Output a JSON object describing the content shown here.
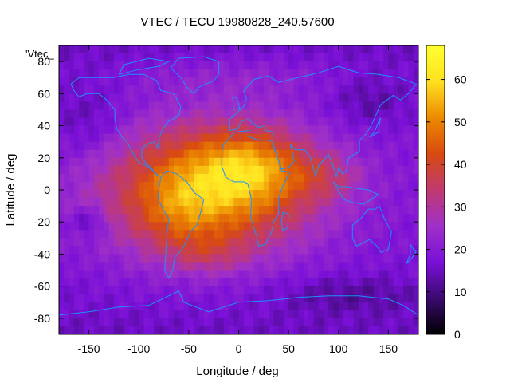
{
  "chart_data": {
    "type": "heatmap",
    "title": "VTEC / TECU 19980828_240.57600",
    "xlabel": "Longitude / deg",
    "ylabel": "Latitude / deg",
    "key_label": "'Vtec_",
    "xlim": [
      -180,
      180
    ],
    "ylim": [
      -90,
      90
    ],
    "x_ticks": [
      -150,
      -100,
      -50,
      0,
      50,
      100,
      150
    ],
    "y_ticks": [
      -80,
      -60,
      -40,
      -20,
      0,
      20,
      40,
      60,
      80
    ],
    "colorbar": {
      "min": 0,
      "max": 68,
      "ticks": [
        0,
        10,
        20,
        30,
        40,
        50,
        60
      ]
    },
    "palette": [
      "#000000",
      "#3a0a6e",
      "#7a10d8",
      "#a030c8",
      "#c03a70",
      "#d84a10",
      "#ec8a00",
      "#ffe020",
      "#ffff30"
    ],
    "continent_color": "#1e90ff",
    "grid": false,
    "blobs": [
      {
        "lon": -30,
        "lat": 0,
        "sx": 70,
        "sy": 28,
        "amp": 34
      },
      {
        "lon": 15,
        "lat": 15,
        "sx": 38,
        "sy": 16,
        "amp": 16
      },
      {
        "lon": -60,
        "lat": -15,
        "sx": 28,
        "sy": 18,
        "amp": 6
      },
      {
        "lon": 90,
        "lat": 8,
        "sx": 25,
        "sy": 10,
        "amp": 8
      },
      {
        "lon": -30,
        "lat": -40,
        "sx": 25,
        "sy": 8,
        "amp": 6
      },
      {
        "lon": 0,
        "lat": 70,
        "sx": 80,
        "sy": 10,
        "amp": 5
      },
      {
        "lon": -150,
        "lat": -20,
        "sx": 12,
        "sy": 6,
        "amp": -9
      },
      {
        "lon": 130,
        "lat": 55,
        "sx": 25,
        "sy": 10,
        "amp": -5
      },
      {
        "lon": 110,
        "lat": -65,
        "sx": 50,
        "sy": 8,
        "amp": -5
      },
      {
        "lon": -150,
        "lat": 40,
        "sx": 25,
        "sy": 15,
        "amp": -5
      }
    ],
    "background_value": 15
  }
}
